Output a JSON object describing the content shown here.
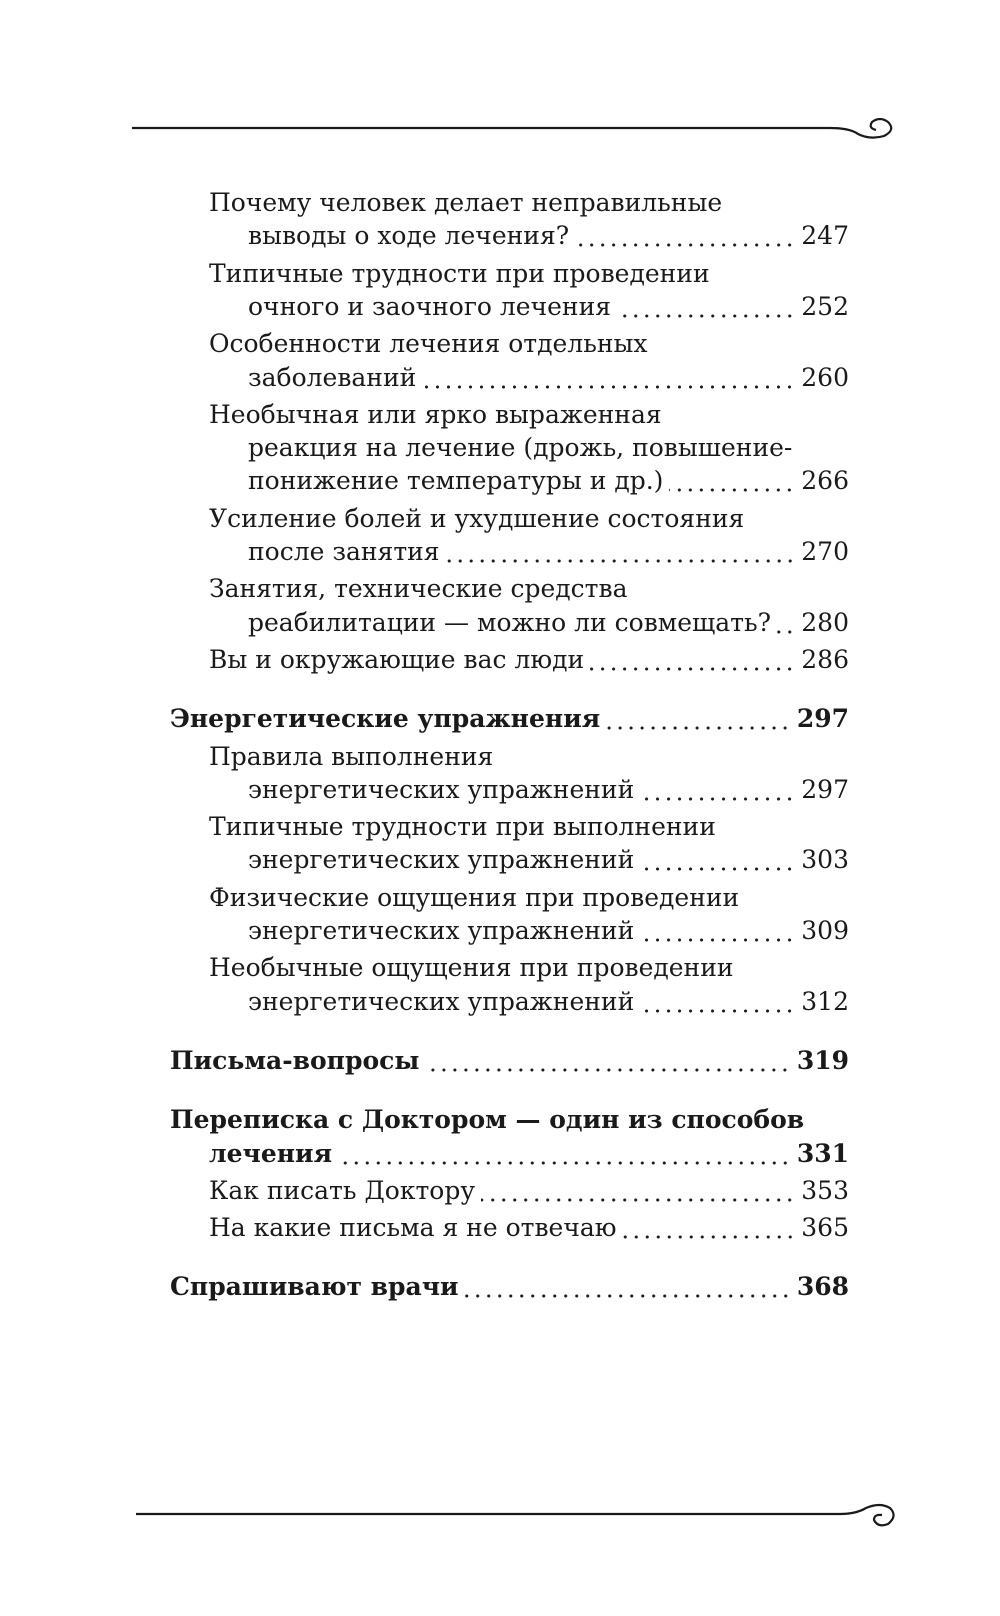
{
  "toc": {
    "entries": [
      {
        "level": 2,
        "lines": [
          "Почему человек делает неправильные",
          "выводы о ходе лечения?"
        ],
        "page": 247
      },
      {
        "level": 2,
        "lines": [
          "Типичные трудности при проведении",
          "очного и заочного лечения"
        ],
        "page": 252
      },
      {
        "level": 2,
        "lines": [
          "Особенности лечения отдельных",
          "заболеваний"
        ],
        "page": 260
      },
      {
        "level": 2,
        "lines": [
          "Необычная или ярко выраженная",
          "реакция на лечение (дрожь, повышение-",
          "понижение температуры и др.)"
        ],
        "page": 266
      },
      {
        "level": 2,
        "lines": [
          "Усиление болей и ухудшение состояния",
          "после занятия"
        ],
        "page": 270
      },
      {
        "level": 2,
        "lines": [
          "Занятия, технические средства",
          "реабилитации — можно ли совмещать?"
        ],
        "page": 280
      },
      {
        "level": 2,
        "lines": [
          "Вы и окружающие вас люди"
        ],
        "page": 286
      },
      {
        "level": 1,
        "lines": [
          "Энергетические упражнения"
        ],
        "page": 297
      },
      {
        "level": 2,
        "lines": [
          "Правила выполнения",
          "энергетических упражнений"
        ],
        "page": 297
      },
      {
        "level": 2,
        "lines": [
          "Типичные трудности при выполнении",
          "энергетических упражнений"
        ],
        "page": 303
      },
      {
        "level": 2,
        "lines": [
          "Физические ощущения при проведении",
          "энергетических упражнений"
        ],
        "page": 309
      },
      {
        "level": 2,
        "lines": [
          "Необычные ощущения при проведении",
          "энергетических упражнений"
        ],
        "page": 312
      },
      {
        "level": 1,
        "lines": [
          "Письма-вопросы"
        ],
        "page": 319
      },
      {
        "level": 1,
        "lines": [
          "Переписка с Доктором — один из способов",
          "лечения"
        ],
        "page": 331
      },
      {
        "level": 2,
        "lines": [
          "Как писать Доктору"
        ],
        "page": 353
      },
      {
        "level": 2,
        "lines": [
          "На какие письма я не отвечаю"
        ],
        "page": 365
      },
      {
        "level": 1,
        "lines": [
          "Спрашивают врачи"
        ],
        "page": 368
      }
    ]
  }
}
